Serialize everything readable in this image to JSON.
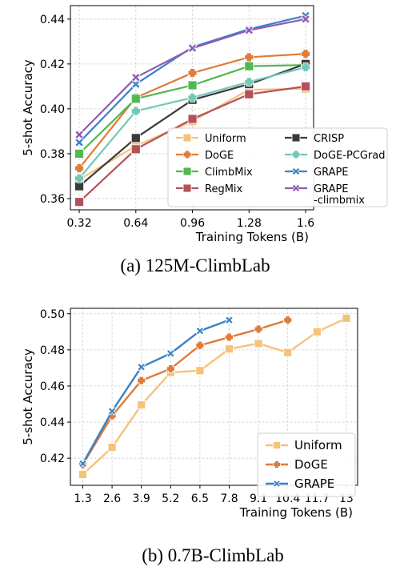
{
  "chart_data": [
    {
      "type": "line",
      "caption": "(a) 125M-ClimbLab",
      "xlabel": "Training Tokens (B)",
      "ylabel": "5-shot Accuracy",
      "x": [
        0.32,
        0.64,
        0.96,
        1.28,
        1.6
      ],
      "x_tick_labels": [
        "0.32",
        "0.64",
        "0.96",
        "1.28",
        "1.6"
      ],
      "y_ticks": [
        "0.36",
        "0.38",
        "0.40",
        "0.42",
        "0.44"
      ],
      "xlim": [
        0.27,
        1.645
      ],
      "ylim": [
        0.355,
        0.446
      ],
      "grid": true,
      "legend_position": "lower-right",
      "legend_columns": 2,
      "series": [
        {
          "name": "Uniform",
          "color": "#f5c27a",
          "marker": "square",
          "values": [
            0.3685,
            0.3835,
            0.3945,
            0.4085,
            0.409
          ]
        },
        {
          "name": "DoGE",
          "color": "#e07b39",
          "marker": "plus",
          "values": [
            0.3735,
            0.405,
            0.416,
            0.423,
            0.4245
          ]
        },
        {
          "name": "ClimbMix",
          "color": "#52b852",
          "marker": "square",
          "values": [
            0.38,
            0.4045,
            0.4105,
            0.419,
            0.4195
          ]
        },
        {
          "name": "RegMix",
          "color": "#b5505a",
          "marker": "square",
          "values": [
            0.3585,
            0.382,
            0.3955,
            0.4065,
            0.41
          ]
        },
        {
          "name": "CRISP",
          "color": "#3a3a3a",
          "marker": "square",
          "values": [
            0.3655,
            0.387,
            0.404,
            0.411,
            0.42
          ]
        },
        {
          "name": "DoGE-PCGrad",
          "color": "#72c8b8",
          "marker": "plus",
          "values": [
            0.369,
            0.399,
            0.405,
            0.412,
            0.4185
          ]
        },
        {
          "name": "GRAPE",
          "color": "#3b82c4",
          "marker": "x",
          "values": [
            0.385,
            0.411,
            0.4275,
            0.4355,
            0.4415
          ]
        },
        {
          "name": "GRAPE\n-climbmix",
          "color": "#8e5bb5",
          "marker": "x",
          "values": [
            0.3885,
            0.414,
            0.427,
            0.435,
            0.44
          ]
        }
      ]
    },
    {
      "type": "line",
      "caption": "(b) 0.7B-ClimbLab",
      "xlabel": "Training Tokens (B)",
      "ylabel": "5-shot Accuracy",
      "x": [
        1.3,
        2.6,
        3.9,
        5.2,
        6.5,
        7.8,
        9.1,
        10.4,
        11.7,
        13
      ],
      "x_tick_labels": [
        "1.3",
        "2.6",
        "3.9",
        "5.2",
        "6.5",
        "7.8",
        "9.1",
        "10.4",
        "11.7",
        "13"
      ],
      "y_ticks": [
        "0.42",
        "0.44",
        "0.46",
        "0.48",
        "0.50"
      ],
      "xlim": [
        0.75,
        13.5
      ],
      "ylim": [
        0.405,
        0.503
      ],
      "grid": true,
      "legend_position": "lower-right",
      "legend_columns": 1,
      "series": [
        {
          "name": "Uniform",
          "color": "#f5c27a",
          "marker": "square",
          "values": [
            0.411,
            0.426,
            0.4495,
            0.4675,
            0.4685,
            0.4805,
            0.4835,
            0.4785,
            0.49,
            0.4975
          ]
        },
        {
          "name": "DoGE",
          "color": "#e07b39",
          "marker": "plus",
          "values": [
            0.4165,
            0.4435,
            0.463,
            0.4695,
            0.4825,
            0.487,
            0.4915,
            0.4965,
            null,
            null
          ]
        },
        {
          "name": "GRAPE",
          "color": "#3b82c4",
          "marker": "x",
          "values": [
            0.417,
            0.446,
            0.4705,
            0.478,
            0.4905,
            0.4965,
            null,
            null,
            null,
            null
          ]
        }
      ]
    }
  ]
}
